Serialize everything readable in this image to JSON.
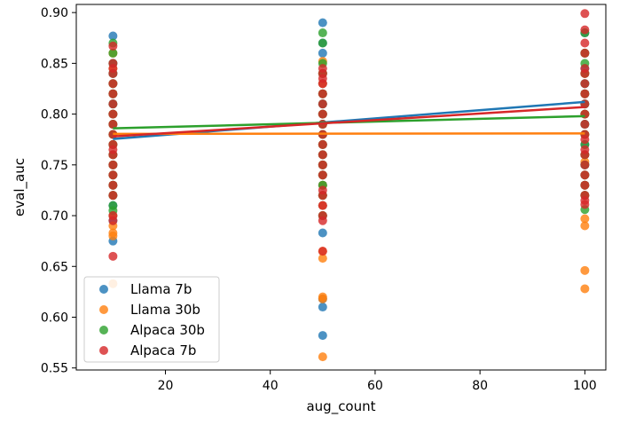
{
  "chart_data": {
    "type": "scatter",
    "title": "",
    "xlabel": "aug_count",
    "ylabel": "eval_auc",
    "xlim": [
      3,
      104
    ],
    "ylim": [
      0.548,
      0.908
    ],
    "xticks": [
      20,
      40,
      60,
      80,
      100
    ],
    "yticks": [
      0.55,
      0.6,
      0.65,
      0.7,
      0.75,
      0.8,
      0.85,
      0.9
    ],
    "ytick_labels": [
      "0.55",
      "0.60",
      "0.65",
      "0.70",
      "0.75",
      "0.80",
      "0.85",
      "0.90"
    ],
    "xtick_labels": [
      "20",
      "40",
      "60",
      "80",
      "100"
    ],
    "grid": false,
    "legend_position": "lower-left",
    "series": [
      {
        "name": "Llama 7b",
        "color": "#1f77b4",
        "points": {
          "10": [
            0.877,
            0.85,
            0.84,
            0.83,
            0.82,
            0.81,
            0.8,
            0.79,
            0.78,
            0.77,
            0.76,
            0.75,
            0.74,
            0.73,
            0.72,
            0.71,
            0.7,
            0.695,
            0.675
          ],
          "50": [
            0.89,
            0.87,
            0.86,
            0.84,
            0.83,
            0.82,
            0.81,
            0.8,
            0.79,
            0.78,
            0.77,
            0.76,
            0.75,
            0.74,
            0.73,
            0.72,
            0.71,
            0.7,
            0.683,
            0.618,
            0.61,
            0.582
          ],
          "100": [
            0.88,
            0.86,
            0.845,
            0.83,
            0.82,
            0.81,
            0.8,
            0.79,
            0.78,
            0.77,
            0.76,
            0.75,
            0.74,
            0.73,
            0.72
          ]
        },
        "fit": [
          0.7755,
          0.812
        ]
      },
      {
        "name": "Llama 30b",
        "color": "#ff7f0e",
        "points": {
          "10": [
            0.86,
            0.845,
            0.83,
            0.82,
            0.8,
            0.79,
            0.78,
            0.77,
            0.76,
            0.75,
            0.74,
            0.73,
            0.72,
            0.7,
            0.69,
            0.683,
            0.68,
            0.633
          ],
          "50": [
            0.852,
            0.84,
            0.83,
            0.82,
            0.8,
            0.79,
            0.78,
            0.77,
            0.76,
            0.75,
            0.74,
            0.73,
            0.72,
            0.71,
            0.7,
            0.665,
            0.658,
            0.62,
            0.618,
            0.561
          ],
          "100": [
            0.86,
            0.84,
            0.82,
            0.8,
            0.78,
            0.76,
            0.753,
            0.74,
            0.73,
            0.72,
            0.697,
            0.69,
            0.646,
            0.628
          ]
        },
        "fit": [
          0.7805,
          0.781
        ]
      },
      {
        "name": "Alpaca 30b",
        "color": "#2ca02c",
        "points": {
          "10": [
            0.87,
            0.86,
            0.85,
            0.84,
            0.83,
            0.82,
            0.81,
            0.8,
            0.79,
            0.78,
            0.77,
            0.76,
            0.75,
            0.74,
            0.73,
            0.72,
            0.71,
            0.705
          ],
          "50": [
            0.88,
            0.87,
            0.85,
            0.84,
            0.82,
            0.81,
            0.8,
            0.79,
            0.78,
            0.77,
            0.76,
            0.75,
            0.74,
            0.73,
            0.72,
            0.7
          ],
          "100": [
            0.88,
            0.86,
            0.85,
            0.84,
            0.83,
            0.82,
            0.81,
            0.8,
            0.79,
            0.78,
            0.77,
            0.76,
            0.75,
            0.74,
            0.73,
            0.72,
            0.706
          ]
        },
        "fit": [
          0.786,
          0.798
        ]
      },
      {
        "name": "Alpaca 7b",
        "color": "#d62728",
        "points": {
          "10": [
            0.867,
            0.85,
            0.845,
            0.84,
            0.83,
            0.82,
            0.81,
            0.8,
            0.79,
            0.78,
            0.77,
            0.765,
            0.76,
            0.75,
            0.74,
            0.73,
            0.72,
            0.7,
            0.695,
            0.66
          ],
          "50": [
            0.845,
            0.84,
            0.835,
            0.83,
            0.82,
            0.81,
            0.8,
            0.79,
            0.78,
            0.77,
            0.76,
            0.75,
            0.74,
            0.725,
            0.72,
            0.71,
            0.7,
            0.695,
            0.665
          ],
          "100": [
            0.899,
            0.883,
            0.87,
            0.86,
            0.845,
            0.84,
            0.83,
            0.82,
            0.81,
            0.8,
            0.79,
            0.78,
            0.775,
            0.765,
            0.76,
            0.75,
            0.74,
            0.73,
            0.72,
            0.715,
            0.711
          ]
        },
        "fit": [
          0.778,
          0.807
        ]
      }
    ]
  }
}
